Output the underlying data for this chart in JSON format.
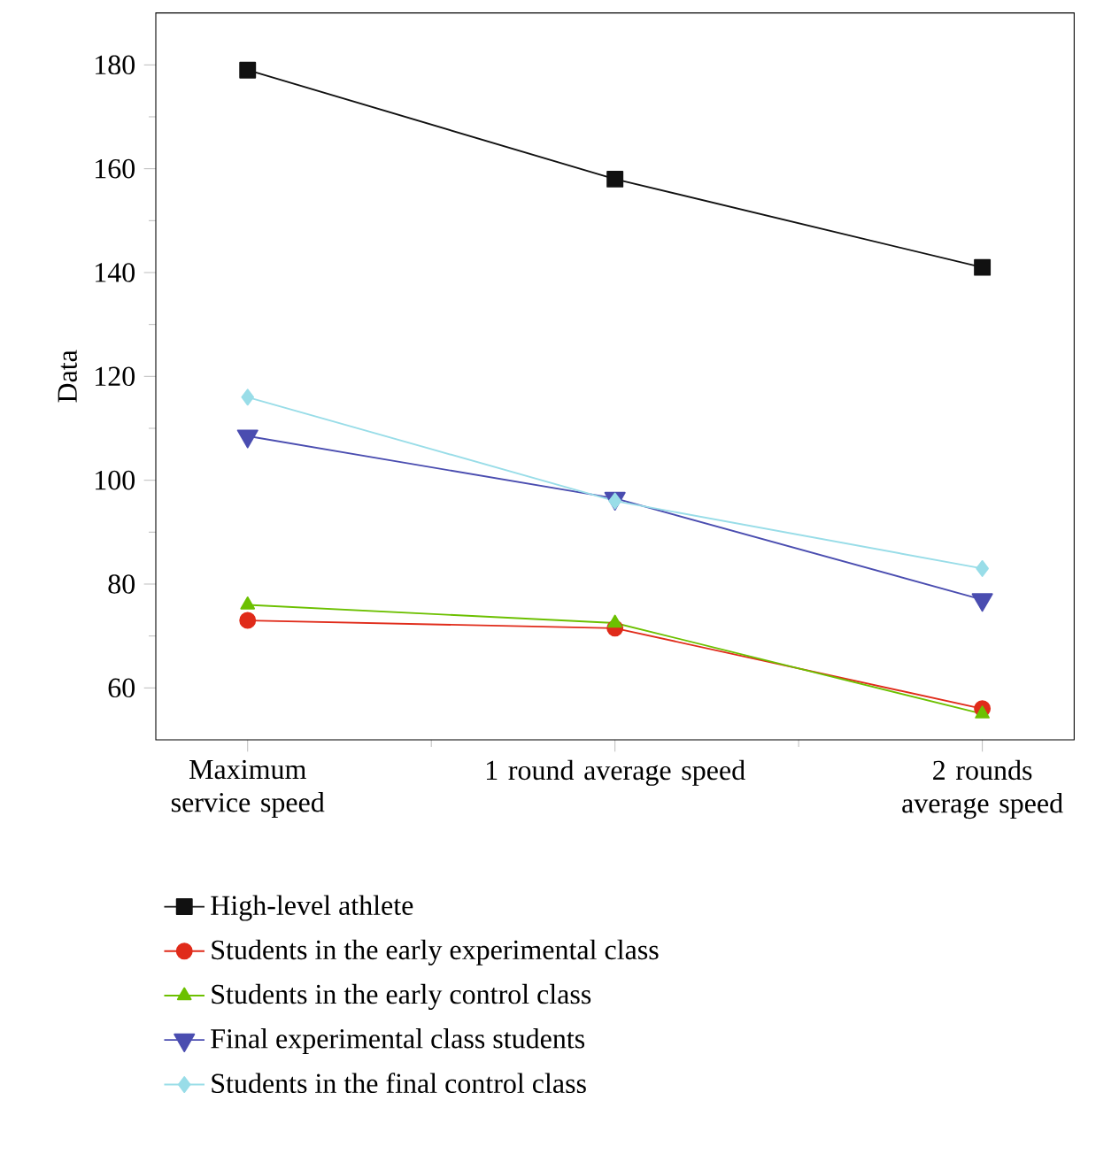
{
  "chart_data": {
    "type": "line",
    "ylabel": "Data",
    "categories": [
      "Maximum service speed",
      "1 round average speed",
      "2 rounds average speed"
    ],
    "ylim": [
      50,
      190
    ],
    "yticks": [
      60,
      80,
      100,
      120,
      140,
      160,
      180
    ],
    "legend": "bottom",
    "grid": false,
    "line_style": "solid",
    "series": [
      {
        "name": "High-level athlete",
        "color": "#111111",
        "marker": "square",
        "values": [
          179,
          158,
          141
        ]
      },
      {
        "name": "Students in the early experimental class",
        "color": "#e02b1a",
        "marker": "circle",
        "values": [
          73,
          71.5,
          56
        ]
      },
      {
        "name": "Students in the early control class",
        "color": "#6cc000",
        "marker": "triangle",
        "values": [
          76,
          72.5,
          55
        ]
      },
      {
        "name": "Final experimental class students",
        "color": "#4a4db0",
        "marker": "triangle_down",
        "values": [
          108.5,
          96.5,
          77
        ]
      },
      {
        "name": "Students in the final control class",
        "color": "#99dde8",
        "marker": "diamond",
        "values": [
          116,
          96,
          83
        ]
      }
    ]
  }
}
